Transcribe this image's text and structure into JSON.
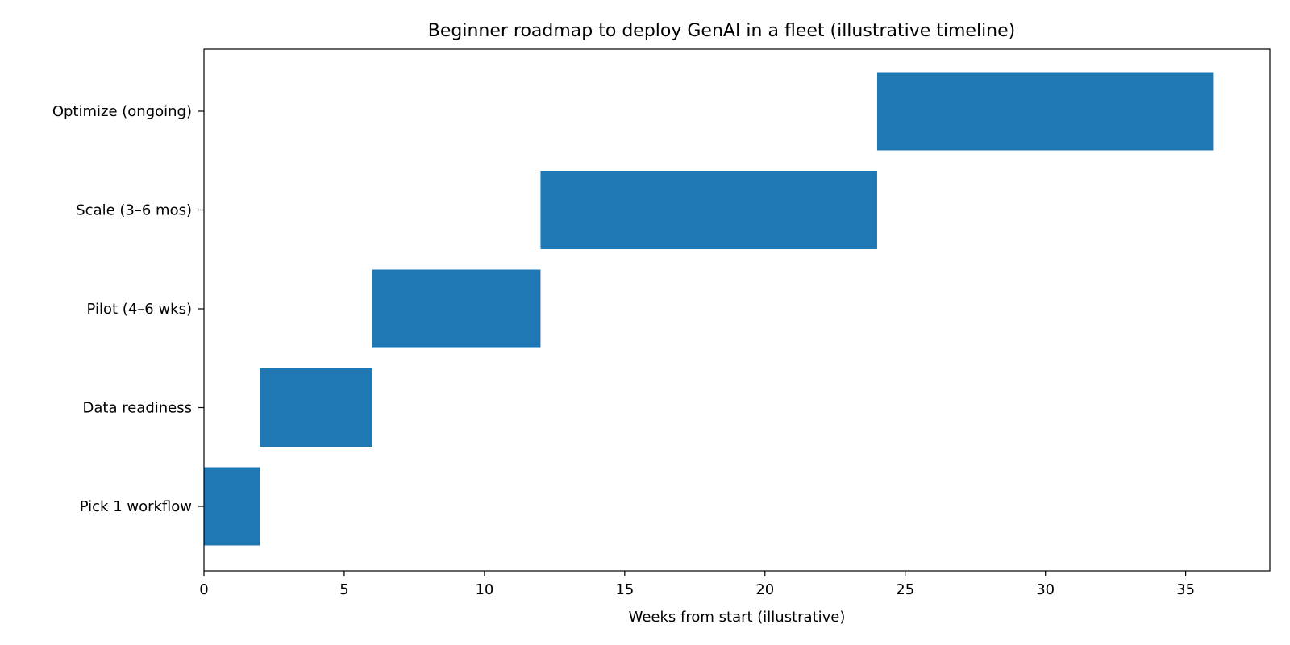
{
  "chart_data": {
    "type": "bar",
    "orientation": "horizontal",
    "title": "Beginner roadmap to deploy GenAI in a fleet (illustrative timeline)",
    "xlabel": "Weeks from start (illustrative)",
    "ylabel": "",
    "xlim": [
      0,
      38
    ],
    "xticks": [
      0,
      5,
      10,
      15,
      20,
      25,
      30,
      35
    ],
    "grid": false,
    "categories": [
      "Pick 1 workflow",
      "Data readiness",
      "Pilot (4–6 wks)",
      "Scale (3–6 mos)",
      "Optimize (ongoing)"
    ],
    "series": [
      {
        "starts": [
          0,
          2,
          6,
          12,
          24
        ],
        "durations": [
          2,
          4,
          6,
          12,
          12
        ],
        "color": "#1f77b4"
      }
    ]
  }
}
